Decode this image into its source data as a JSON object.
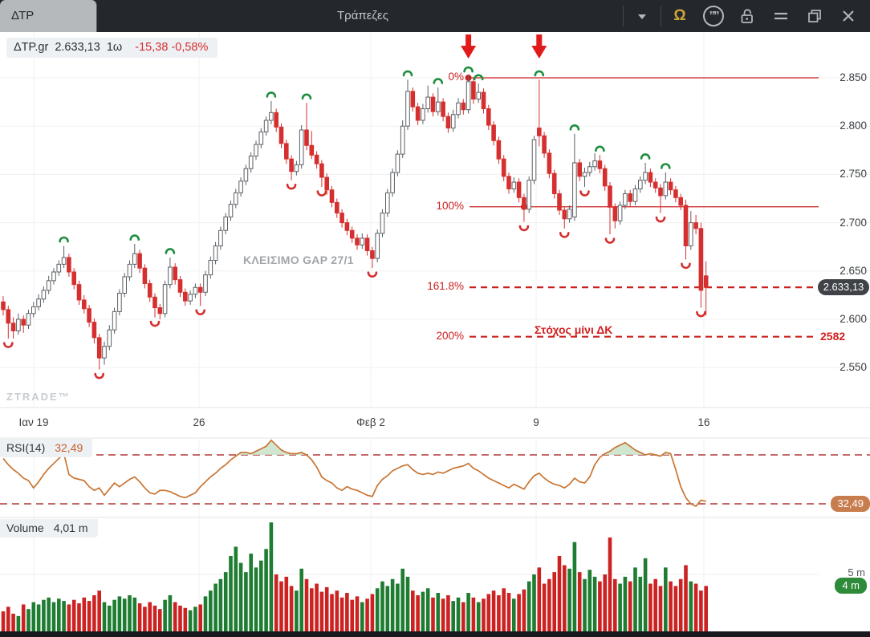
{
  "titlebar": {
    "tab": "ΔΤΡ",
    "title": "Τράπεζες",
    "omega_glyph": "Ω",
    "quotes_glyph": "””",
    "icons": [
      "dropdown-chevron",
      "omega",
      "quotes-circle",
      "lock-open",
      "menu",
      "restore-window",
      "close-window"
    ]
  },
  "info_line": {
    "symbol": "ΔTP.gr",
    "price": "2.633,13",
    "interval": "1ω",
    "change": "-15,38",
    "change_pct": "-0,58%"
  },
  "annotations": {
    "gap_note": "ΚΛΕΙΣΙΜΟ GAP 27/1",
    "target_note": "Στόχος μίνι ΔΚ",
    "watermark": "ZTRADE™"
  },
  "last_price_badge": "2.633,13",
  "price_axis": {
    "labels": [
      "2.850",
      "2.800",
      "2.750",
      "2.700",
      "2.650",
      "2.600",
      "2.550"
    ],
    "values": [
      2.85,
      2.8,
      2.75,
      2.7,
      2.65,
      2.6,
      2.55
    ]
  },
  "time_axis": [
    {
      "label": "Ιαν 19",
      "x": 42
    },
    {
      "label": "26",
      "x": 248
    },
    {
      "label": "Φεβ 2",
      "x": 462
    },
    {
      "label": "9",
      "x": 668
    },
    {
      "label": "16",
      "x": 877
    }
  ],
  "rsi_panel": {
    "label": "RSI(14)",
    "value": "32,49",
    "badge": "32,49"
  },
  "volume_panel": {
    "label": "Volume",
    "value": "4,01 m",
    "axis_label": "5 m",
    "badge": "4 m"
  },
  "colors": {
    "up_candle_border": "#5a5f64",
    "down_candle": "#d62f2f",
    "fractal_up": "#1e8e3e",
    "fractal_down": "#d62f2f",
    "fib_line": "#cb2020",
    "arrow": "#e11b1b",
    "rsi_line": "#c87533",
    "rsi_band": "#b03636",
    "rsi_fill": "#c8e2c8",
    "vol_up": "#1e7d32",
    "vol_down": "#cc2222",
    "grid": "#f0f0f0",
    "separator": "#e2e4e6",
    "price_badge_bg": "#3f4347",
    "rsi_badge_bg": "#c87d4e",
    "vol_badge_bg": "#2e8b3a"
  },
  "chart_data": {
    "type": "candlestick",
    "title": "ΔTP.gr 1ω (hourly) with Fibonacci extension levels",
    "y_range": [
      2.55,
      2.85
    ],
    "x_tick_labels": [
      "Ιαν 19",
      "26",
      "Φεβ 2",
      "9",
      "16"
    ],
    "fib_levels": [
      {
        "label": "0%",
        "value": 2.85,
        "style": "solid",
        "anchor_candle": 92
      },
      {
        "label": "100%",
        "value": 2.7165,
        "style": "solid",
        "anchor_candle": 103
      },
      {
        "label": "161.8%",
        "value": 2.6331,
        "style": "dashed"
      },
      {
        "label": "200%",
        "value": 2.582,
        "style": "dashed",
        "right_label": "2582"
      }
    ],
    "arrows": [
      92,
      106
    ],
    "fractal_high": [
      12,
      26,
      33,
      53,
      60,
      80,
      86,
      92,
      94,
      106,
      113,
      118,
      127,
      131
    ],
    "fractal_low": [
      1,
      19,
      30,
      39,
      57,
      63,
      73,
      103,
      111,
      115,
      120,
      130,
      135,
      138
    ],
    "candles": [
      [
        2.618,
        2.624,
        2.604,
        2.61
      ],
      [
        2.61,
        2.614,
        2.58,
        2.596
      ],
      [
        2.596,
        2.602,
        2.58,
        2.588
      ],
      [
        2.588,
        2.606,
        2.584,
        2.6
      ],
      [
        2.6,
        2.604,
        2.586,
        2.594
      ],
      [
        2.594,
        2.61,
        2.59,
        2.606
      ],
      [
        2.606,
        2.618,
        2.602,
        2.613
      ],
      [
        2.613,
        2.626,
        2.609,
        2.621
      ],
      [
        2.621,
        2.634,
        2.617,
        2.63
      ],
      [
        2.63,
        2.645,
        2.626,
        2.64
      ],
      [
        2.64,
        2.653,
        2.636,
        2.649
      ],
      [
        2.649,
        2.661,
        2.645,
        2.657
      ],
      [
        2.657,
        2.676,
        2.653,
        2.664
      ],
      [
        2.664,
        2.668,
        2.644,
        2.649
      ],
      [
        2.649,
        2.653,
        2.631,
        2.636
      ],
      [
        2.636,
        2.64,
        2.615,
        2.62
      ],
      [
        2.62,
        2.625,
        2.606,
        2.611
      ],
      [
        2.611,
        2.615,
        2.592,
        2.597
      ],
      [
        2.597,
        2.601,
        2.575,
        2.581
      ],
      [
        2.581,
        2.585,
        2.548,
        2.56
      ],
      [
        2.56,
        2.577,
        2.553,
        2.572
      ],
      [
        2.572,
        2.594,
        2.568,
        2.589
      ],
      [
        2.589,
        2.612,
        2.585,
        2.608
      ],
      [
        2.608,
        2.631,
        2.604,
        2.627
      ],
      [
        2.627,
        2.648,
        2.623,
        2.644
      ],
      [
        2.644,
        2.661,
        2.64,
        2.657
      ],
      [
        2.657,
        2.678,
        2.653,
        2.668
      ],
      [
        2.668,
        2.672,
        2.648,
        2.653
      ],
      [
        2.653,
        2.657,
        2.632,
        2.637
      ],
      [
        2.637,
        2.641,
        2.618,
        2.623
      ],
      [
        2.623,
        2.627,
        2.602,
        2.612
      ],
      [
        2.612,
        2.616,
        2.6,
        2.606
      ],
      [
        2.606,
        2.64,
        2.602,
        2.636
      ],
      [
        2.636,
        2.664,
        2.632,
        2.654
      ],
      [
        2.654,
        2.658,
        2.636,
        2.641
      ],
      [
        2.641,
        2.645,
        2.623,
        2.628
      ],
      [
        2.628,
        2.632,
        2.614,
        2.619
      ],
      [
        2.619,
        2.63,
        2.615,
        2.626
      ],
      [
        2.626,
        2.637,
        2.622,
        2.633
      ],
      [
        2.633,
        2.637,
        2.614,
        2.628
      ],
      [
        2.628,
        2.65,
        2.624,
        2.646
      ],
      [
        2.646,
        2.665,
        2.642,
        2.661
      ],
      [
        2.661,
        2.68,
        2.657,
        2.676
      ],
      [
        2.676,
        2.696,
        2.672,
        2.692
      ],
      [
        2.692,
        2.71,
        2.688,
        2.706
      ],
      [
        2.706,
        2.723,
        2.702,
        2.719
      ],
      [
        2.719,
        2.735,
        2.715,
        2.731
      ],
      [
        2.731,
        2.747,
        2.727,
        2.743
      ],
      [
        2.743,
        2.76,
        2.739,
        2.756
      ],
      [
        2.756,
        2.773,
        2.752,
        2.769
      ],
      [
        2.769,
        2.785,
        2.765,
        2.781
      ],
      [
        2.781,
        2.798,
        2.777,
        2.794
      ],
      [
        2.794,
        2.81,
        2.79,
        2.806
      ],
      [
        2.806,
        2.826,
        2.802,
        2.814
      ],
      [
        2.814,
        2.818,
        2.794,
        2.799
      ],
      [
        2.799,
        2.803,
        2.777,
        2.782
      ],
      [
        2.782,
        2.786,
        2.761,
        2.766
      ],
      [
        2.766,
        2.77,
        2.744,
        2.753
      ],
      [
        2.753,
        2.764,
        2.749,
        2.76
      ],
      [
        2.76,
        2.801,
        2.756,
        2.796
      ],
      [
        2.796,
        2.824,
        2.775,
        2.78
      ],
      [
        2.78,
        2.795,
        2.766,
        2.77
      ],
      [
        2.77,
        2.774,
        2.756,
        2.761
      ],
      [
        2.761,
        2.765,
        2.737,
        2.747
      ],
      [
        2.747,
        2.751,
        2.729,
        2.734
      ],
      [
        2.734,
        2.738,
        2.716,
        2.721
      ],
      [
        2.721,
        2.725,
        2.705,
        2.71
      ],
      [
        2.71,
        2.714,
        2.695,
        2.7
      ],
      [
        2.7,
        2.704,
        2.687,
        2.692
      ],
      [
        2.692,
        2.696,
        2.679,
        2.684
      ],
      [
        2.684,
        2.688,
        2.672,
        2.677
      ],
      [
        2.677,
        2.689,
        2.673,
        2.684
      ],
      [
        2.684,
        2.688,
        2.666,
        2.671
      ],
      [
        2.671,
        2.675,
        2.653,
        2.663
      ],
      [
        2.663,
        2.693,
        2.659,
        2.689
      ],
      [
        2.689,
        2.714,
        2.685,
        2.71
      ],
      [
        2.71,
        2.735,
        2.706,
        2.731
      ],
      [
        2.731,
        2.756,
        2.727,
        2.752
      ],
      [
        2.752,
        2.775,
        2.748,
        2.771
      ],
      [
        2.771,
        2.806,
        2.767,
        2.8
      ],
      [
        2.8,
        2.848,
        2.796,
        2.836
      ],
      [
        2.836,
        2.84,
        2.815,
        2.82
      ],
      [
        2.82,
        2.824,
        2.801,
        2.806
      ],
      [
        2.806,
        2.823,
        2.802,
        2.818
      ],
      [
        2.818,
        2.842,
        2.814,
        2.83
      ],
      [
        2.83,
        2.834,
        2.81,
        2.815
      ],
      [
        2.815,
        2.84,
        2.811,
        2.825
      ],
      [
        2.825,
        2.829,
        2.805,
        2.81
      ],
      [
        2.81,
        2.814,
        2.793,
        2.798
      ],
      [
        2.798,
        2.817,
        2.794,
        2.812
      ],
      [
        2.812,
        2.829,
        2.808,
        2.824
      ],
      [
        2.824,
        2.828,
        2.812,
        2.817
      ],
      [
        2.817,
        2.852,
        2.813,
        2.846
      ],
      [
        2.846,
        2.85,
        2.823,
        2.828
      ],
      [
        2.828,
        2.844,
        2.824,
        2.835
      ],
      [
        2.835,
        2.839,
        2.813,
        2.818
      ],
      [
        2.818,
        2.822,
        2.796,
        2.801
      ],
      [
        2.801,
        2.805,
        2.78,
        2.785
      ],
      [
        2.785,
        2.789,
        2.761,
        2.766
      ],
      [
        2.766,
        2.77,
        2.743,
        2.748
      ],
      [
        2.748,
        2.752,
        2.73,
        2.735
      ],
      [
        2.735,
        2.747,
        2.731,
        2.742
      ],
      [
        2.742,
        2.746,
        2.721,
        2.726
      ],
      [
        2.726,
        2.73,
        2.701,
        2.714
      ],
      [
        2.714,
        2.748,
        2.71,
        2.744
      ],
      [
        2.744,
        2.79,
        2.74,
        2.786
      ],
      [
        2.798,
        2.848,
        2.779,
        2.79
      ],
      [
        2.79,
        2.794,
        2.767,
        2.772
      ],
      [
        2.772,
        2.776,
        2.746,
        2.751
      ],
      [
        2.751,
        2.755,
        2.725,
        2.73
      ],
      [
        2.73,
        2.734,
        2.708,
        2.713
      ],
      [
        2.713,
        2.717,
        2.694,
        2.704
      ],
      [
        2.704,
        2.718,
        2.7,
        2.714
      ],
      [
        2.706,
        2.792,
        2.702,
        2.762
      ],
      [
        2.762,
        2.766,
        2.743,
        2.748
      ],
      [
        2.748,
        2.757,
        2.737,
        2.752
      ],
      [
        2.752,
        2.763,
        2.748,
        2.758
      ],
      [
        2.758,
        2.772,
        2.754,
        2.764
      ],
      [
        2.764,
        2.77,
        2.751,
        2.756
      ],
      [
        2.756,
        2.76,
        2.733,
        2.738
      ],
      [
        2.738,
        2.742,
        2.688,
        2.716
      ],
      [
        2.716,
        2.72,
        2.694,
        2.702
      ],
      [
        2.702,
        2.722,
        2.698,
        2.718
      ],
      [
        2.718,
        2.734,
        2.714,
        2.73
      ],
      [
        2.73,
        2.734,
        2.717,
        2.722
      ],
      [
        2.722,
        2.739,
        2.718,
        2.735
      ],
      [
        2.735,
        2.748,
        2.731,
        2.744
      ],
      [
        2.744,
        2.762,
        2.74,
        2.752
      ],
      [
        2.752,
        2.756,
        2.737,
        2.742
      ],
      [
        2.742,
        2.746,
        2.731,
        2.736
      ],
      [
        2.736,
        2.74,
        2.71,
        2.728
      ],
      [
        2.728,
        2.752,
        2.724,
        2.742
      ],
      [
        2.742,
        2.746,
        2.729,
        2.734
      ],
      [
        2.734,
        2.738,
        2.721,
        2.726
      ],
      [
        2.726,
        2.73,
        2.713,
        2.718
      ],
      [
        2.718,
        2.724,
        2.662,
        2.676
      ],
      [
        2.676,
        2.712,
        2.672,
        2.7
      ],
      [
        2.7,
        2.708,
        2.688,
        2.694
      ],
      [
        2.694,
        2.7,
        2.612,
        2.63
      ],
      [
        2.645,
        2.66,
        2.604,
        2.633
      ]
    ],
    "rsi": {
      "period": 14,
      "upper_band": 70,
      "lower_band": 30,
      "last": 32.49,
      "values": [
        67,
        62,
        58,
        55,
        51,
        49,
        43,
        48,
        54,
        59,
        63,
        67,
        71,
        54,
        51,
        50,
        49,
        44,
        41,
        43,
        37,
        42,
        47,
        44,
        47,
        50,
        52,
        48,
        43,
        39,
        38,
        41,
        41,
        40,
        38,
        36,
        35,
        37,
        39,
        44,
        48,
        52,
        55,
        59,
        62,
        66,
        69,
        72,
        72,
        71,
        73,
        75,
        77,
        82,
        78,
        74,
        72,
        71,
        71,
        72,
        70,
        66,
        60,
        52,
        49,
        47,
        43,
        41,
        44,
        42,
        41,
        39,
        37,
        36,
        45,
        50,
        53,
        57,
        59,
        61,
        62,
        58,
        55,
        54,
        55,
        54,
        56,
        55,
        57,
        59,
        60,
        61,
        63,
        59,
        57,
        54,
        51,
        49,
        47,
        45,
        43,
        46,
        44,
        42,
        48,
        53,
        55,
        51,
        48,
        46,
        45,
        43,
        46,
        51,
        48,
        47,
        52,
        62,
        68,
        71,
        73,
        76,
        78,
        80,
        77,
        74,
        72,
        70,
        71,
        70,
        69,
        72,
        71,
        58,
        44,
        35,
        30,
        28,
        33,
        32
      ]
    },
    "volume_last_millions": 4.01,
    "volume_millions": [
      1.8,
      2.2,
      1.6,
      1.4,
      2.4,
      2.0,
      2.6,
      2.4,
      2.8,
      3.0,
      2.6,
      2.9,
      2.7,
      2.4,
      2.8,
      2.5,
      3.0,
      2.7,
      3.2,
      3.6,
      2.6,
      2.3,
      2.8,
      3.1,
      2.9,
      3.2,
      3.0,
      2.5,
      2.2,
      2.6,
      2.3,
      2.0,
      2.8,
      3.2,
      2.6,
      2.3,
      2.1,
      1.9,
      2.2,
      2.4,
      3.1,
      3.6,
      4.2,
      4.6,
      5.2,
      6.6,
      7.4,
      6.0,
      5.2,
      6.8,
      5.6,
      6.2,
      7.2,
      9.5,
      5.0,
      4.4,
      4.8,
      4.0,
      3.6,
      5.5,
      4.6,
      3.8,
      4.2,
      3.5,
      3.9,
      3.3,
      3.6,
      3.0,
      3.4,
      2.8,
      3.1,
      2.6,
      2.9,
      3.3,
      3.8,
      4.4,
      4.0,
      4.6,
      4.2,
      5.5,
      4.8,
      3.6,
      3.2,
      3.5,
      3.8,
      3.0,
      3.4,
      2.9,
      3.2,
      2.7,
      3.0,
      2.6,
      3.4,
      3.0,
      2.6,
      2.9,
      3.3,
      3.6,
      3.2,
      3.8,
      3.4,
      2.9,
      3.3,
      3.7,
      4.4,
      5.0,
      5.6,
      4.2,
      4.6,
      5.2,
      6.6,
      5.8,
      5.5,
      7.8,
      5.2,
      4.6,
      5.4,
      4.8,
      4.4,
      5.0,
      8.2,
      4.6,
      4.2,
      4.8,
      4.4,
      5.6,
      4.8,
      6.4,
      4.2,
      4.6,
      4.0,
      5.6,
      4.4,
      4.0,
      4.6,
      5.8,
      4.4,
      4.2,
      3.6,
      4.0
    ]
  }
}
